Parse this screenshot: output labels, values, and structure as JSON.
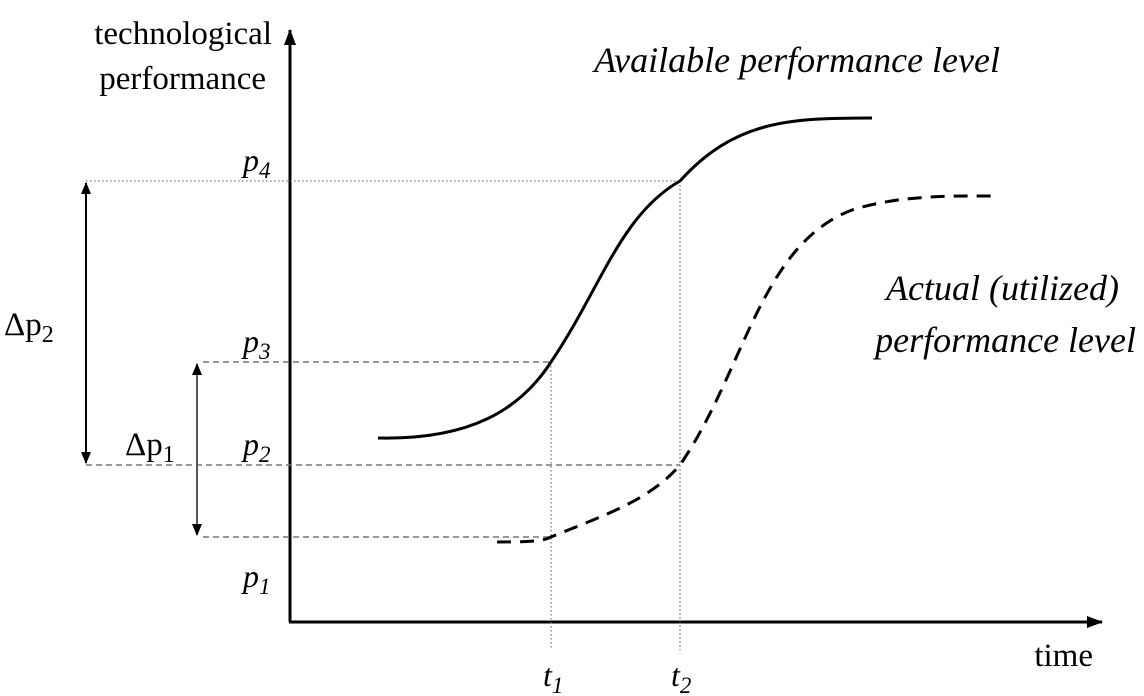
{
  "axes": {
    "y_label_line1": "technological",
    "y_label_line2": "performance",
    "x_label": "time"
  },
  "curves": {
    "available_label": "Available performance level",
    "actual_label_line1": "Actual (utilized)",
    "actual_label_line2": "performance level"
  },
  "levels": {
    "p4": {
      "base": "p",
      "sub": "4"
    },
    "p3": {
      "base": "p",
      "sub": "3"
    },
    "p2": {
      "base": "p",
      "sub": "2"
    },
    "p1": {
      "base": "p",
      "sub": "1"
    }
  },
  "times": {
    "t1": {
      "base": "t",
      "sub": "1"
    },
    "t2": {
      "base": "t",
      "sub": "2"
    }
  },
  "deltas": {
    "dp2": {
      "base": "Δp",
      "sub": "2"
    },
    "dp1": {
      "base": "Δp",
      "sub": "1"
    }
  },
  "colors": {
    "ink": "#000000",
    "guide_gray": "#777777"
  }
}
